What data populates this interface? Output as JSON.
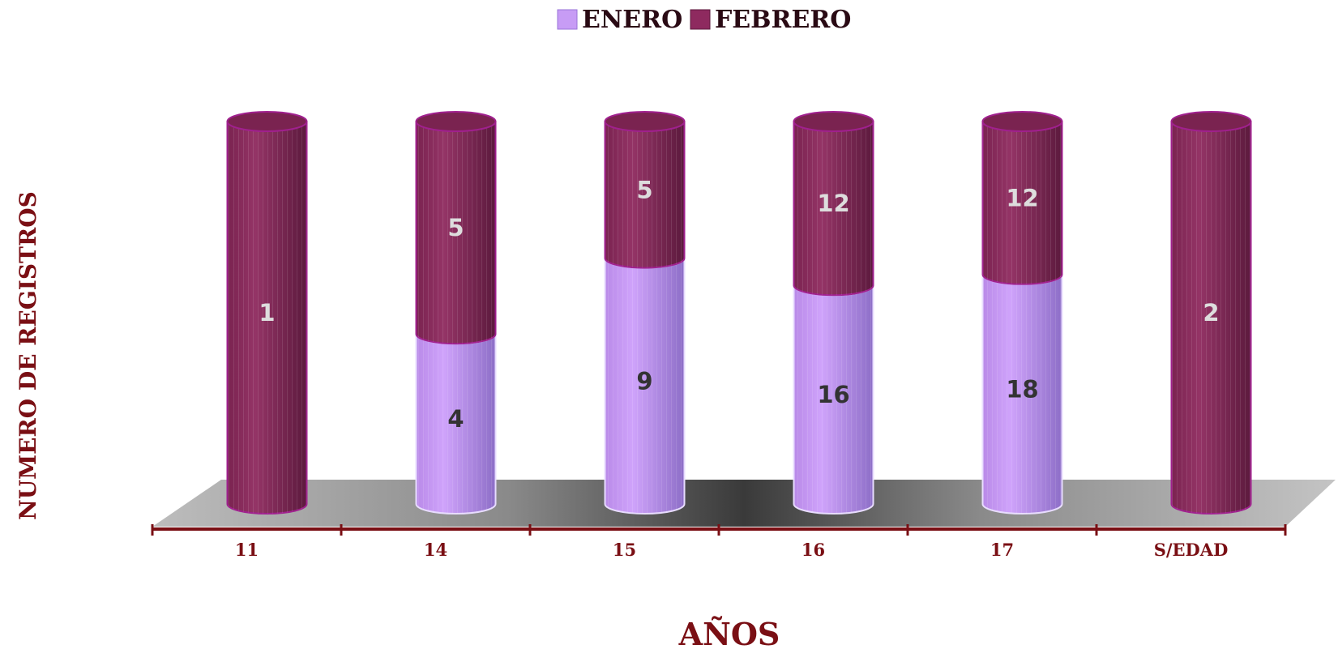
{
  "chart_data": {
    "type": "bar",
    "stacked": true,
    "style": "3d-cylinder",
    "categories": [
      "11",
      "14",
      "15",
      "16",
      "17",
      "S/EDAD"
    ],
    "series": [
      {
        "name": "ENERO",
        "color": "#c79cf5",
        "values": [
          null,
          4,
          9,
          16,
          18,
          null
        ]
      },
      {
        "name": "FEBRERO",
        "color": "#8e2a5f",
        "values": [
          1,
          5,
          5,
          12,
          12,
          2
        ]
      }
    ],
    "xlabel": "AÑOS",
    "ylabel": "NUMERO DE REGISTROS",
    "legend": "top-center",
    "colors": {
      "axis": "#7a0f14",
      "label_dark": "#333333",
      "label_light": "#dddddd"
    }
  }
}
